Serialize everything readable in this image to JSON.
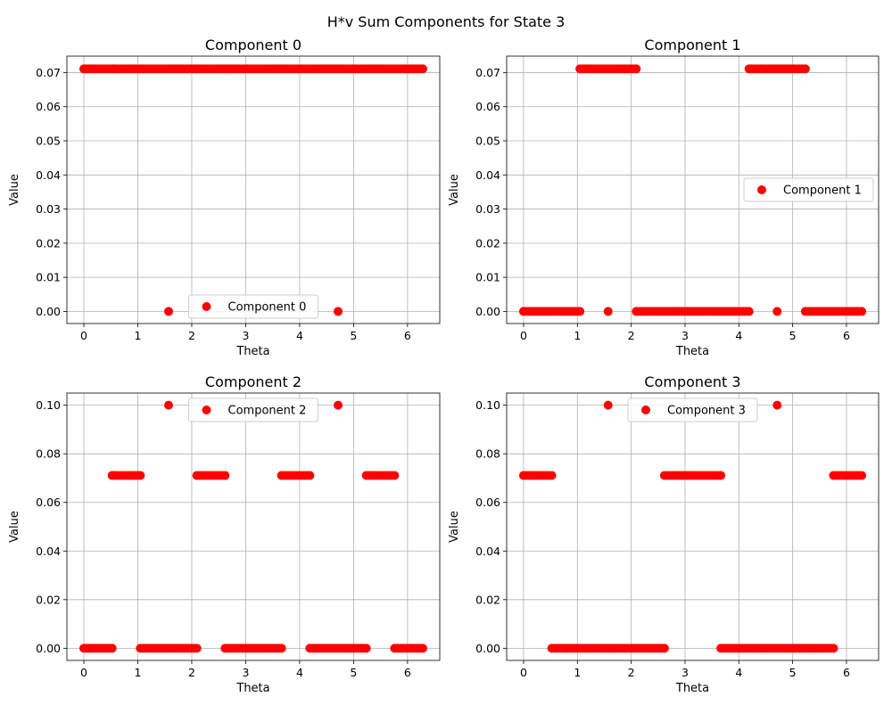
{
  "suptitle": "H*v Sum Components for State 3",
  "colors": {
    "marker": "#ff0000",
    "grid": "#b0b0b0"
  },
  "chart_data": [
    {
      "type": "scatter",
      "title": "Component 0",
      "xlabel": "Theta",
      "ylabel": "Value",
      "xlim": [
        -0.3142,
        6.5973
      ],
      "ylim": [
        -0.00355,
        0.07482
      ],
      "xticks": [
        0,
        1,
        2,
        3,
        4,
        5,
        6
      ],
      "xticklabels": [
        "0",
        "1",
        "2",
        "3",
        "4",
        "5",
        "6"
      ],
      "yticks": [
        0,
        0.01,
        0.02,
        0.03,
        0.04,
        0.05,
        0.06,
        0.07
      ],
      "yticklabels": [
        "0.00",
        "0.01",
        "0.02",
        "0.03",
        "0.04",
        "0.05",
        "0.06",
        "0.07"
      ],
      "grid": true,
      "legend": {
        "label": "Component 0",
        "position": "lower center"
      },
      "series": [
        {
          "label": "Component 0",
          "color": "#ff0000",
          "points": [
            [
              0,
              0.0711,
              6.2832,
              0.0711
            ],
            [
              1.5708,
              0,
              1.5708,
              0
            ],
            [
              4.7124,
              0,
              4.7124,
              0
            ]
          ]
        }
      ]
    },
    {
      "type": "scatter",
      "title": "Component 1",
      "xlabel": "Theta",
      "ylabel": "Value",
      "xlim": [
        -0.3142,
        6.5973
      ],
      "ylim": [
        -0.00355,
        0.07482
      ],
      "xticks": [
        0,
        1,
        2,
        3,
        4,
        5,
        6
      ],
      "xticklabels": [
        "0",
        "1",
        "2",
        "3",
        "4",
        "5",
        "6"
      ],
      "yticks": [
        0,
        0.01,
        0.02,
        0.03,
        0.04,
        0.05,
        0.06,
        0.07
      ],
      "yticklabels": [
        "0.00",
        "0.01",
        "0.02",
        "0.03",
        "0.04",
        "0.05",
        "0.06",
        "0.07"
      ],
      "grid": true,
      "legend": {
        "label": "Component 1",
        "position": "center right"
      },
      "series": [
        {
          "label": "Component 1",
          "color": "#ff0000",
          "points": [
            [
              0,
              0,
              1.0472,
              0
            ],
            [
              1.0472,
              0.0711,
              2.0944,
              0.0711
            ],
            [
              1.5708,
              0,
              1.5708,
              0
            ],
            [
              2.0944,
              0,
              4.1888,
              0
            ],
            [
              4.1888,
              0.0711,
              5.236,
              0.0711
            ],
            [
              4.7124,
              0,
              4.7124,
              0
            ],
            [
              5.236,
              0,
              6.2832,
              0
            ]
          ]
        }
      ]
    },
    {
      "type": "scatter",
      "title": "Component 2",
      "xlabel": "Theta",
      "ylabel": "Value",
      "xlim": [
        -0.3142,
        6.5973
      ],
      "ylim": [
        -0.005,
        0.105
      ],
      "xticks": [
        0,
        1,
        2,
        3,
        4,
        5,
        6
      ],
      "xticklabels": [
        "0",
        "1",
        "2",
        "3",
        "4",
        "5",
        "6"
      ],
      "yticks": [
        0,
        0.02,
        0.04,
        0.06,
        0.08,
        0.1
      ],
      "yticklabels": [
        "0.00",
        "0.02",
        "0.04",
        "0.06",
        "0.08",
        "0.10"
      ],
      "grid": true,
      "legend": {
        "label": "Component 2",
        "position": "upper center"
      },
      "series": [
        {
          "label": "Component 2",
          "color": "#ff0000",
          "points": [
            [
              0,
              0,
              0.5236,
              0
            ],
            [
              0.5236,
              0.0711,
              1.0472,
              0.0711
            ],
            [
              1.0472,
              0,
              2.0944,
              0
            ],
            [
              1.5708,
              0.1,
              1.5708,
              0.1
            ],
            [
              2.0944,
              0.0711,
              2.618,
              0.0711
            ],
            [
              2.618,
              0,
              3.6652,
              0
            ],
            [
              3.6652,
              0.0711,
              4.1888,
              0.0711
            ],
            [
              4.1888,
              0,
              5.236,
              0
            ],
            [
              4.7124,
              0.1,
              4.7124,
              0.1
            ],
            [
              5.236,
              0.0711,
              5.7596,
              0.0711
            ],
            [
              5.7596,
              0,
              6.2832,
              0
            ]
          ]
        }
      ]
    },
    {
      "type": "scatter",
      "title": "Component 3",
      "xlabel": "Theta",
      "ylabel": "Value",
      "xlim": [
        -0.3142,
        6.5973
      ],
      "ylim": [
        -0.005,
        0.105
      ],
      "xticks": [
        0,
        1,
        2,
        3,
        4,
        5,
        6
      ],
      "xticklabels": [
        "0",
        "1",
        "2",
        "3",
        "4",
        "5",
        "6"
      ],
      "yticks": [
        0,
        0.02,
        0.04,
        0.06,
        0.08,
        0.1
      ],
      "yticklabels": [
        "0.00",
        "0.02",
        "0.04",
        "0.06",
        "0.08",
        "0.10"
      ],
      "grid": true,
      "legend": {
        "label": "Component 3",
        "position": "upper center"
      },
      "series": [
        {
          "label": "Component 3",
          "color": "#ff0000",
          "points": [
            [
              0,
              0.0711,
              0.5236,
              0.0711
            ],
            [
              0.5236,
              0,
              2.618,
              0
            ],
            [
              1.5708,
              0.1,
              1.5708,
              0.1
            ],
            [
              2.618,
              0.0711,
              3.6652,
              0.0711
            ],
            [
              3.6652,
              0,
              5.7596,
              0
            ],
            [
              4.7124,
              0.1,
              4.7124,
              0.1
            ],
            [
              5.7596,
              0.0711,
              6.2832,
              0.0711
            ]
          ]
        }
      ]
    }
  ]
}
